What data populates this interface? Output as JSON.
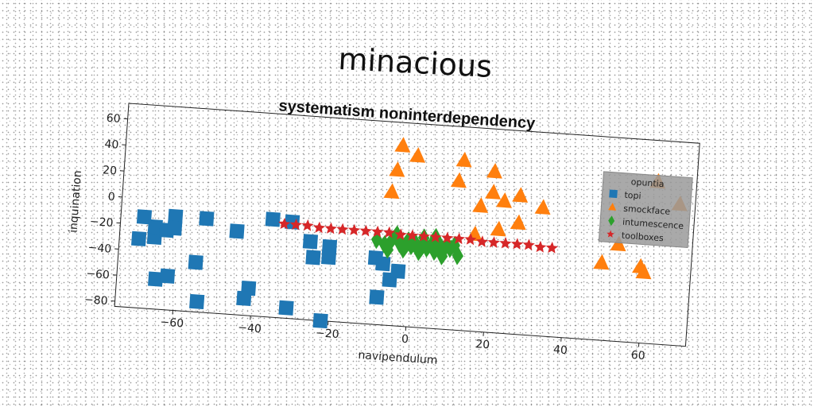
{
  "title": "minacious",
  "chart_data": {
    "type": "scatter",
    "title": "systematism noninterdependency",
    "xlabel": "navipendulum",
    "ylabel": "inquination",
    "xlim": [
      -75,
      72
    ],
    "ylim": [
      -84,
      72
    ],
    "xticks": [
      -60,
      -40,
      -20,
      0,
      20,
      40,
      60
    ],
    "yticks": [
      -80,
      -60,
      -40,
      -20,
      0,
      20,
      40,
      60
    ],
    "grid": false,
    "legend": {
      "title": "opuntia",
      "placement": "upper right"
    },
    "series": [
      {
        "name": "topi",
        "marker": "square",
        "color": "#1f77b4",
        "points": [
          [
            -69,
            -14
          ],
          [
            -70,
            -31
          ],
          [
            -66,
            -29
          ],
          [
            -66,
            -21
          ],
          [
            -63,
            -23
          ],
          [
            -61,
            -12
          ],
          [
            -61,
            -21
          ],
          [
            -53,
            -12
          ],
          [
            -55,
            -46
          ],
          [
            -45,
            -20
          ],
          [
            -36,
            -9
          ],
          [
            -31,
            -10
          ],
          [
            -26,
            -24
          ],
          [
            -25,
            -36
          ],
          [
            -21,
            -27
          ],
          [
            -21,
            -35
          ],
          [
            -65,
            -61
          ],
          [
            -62,
            -58
          ],
          [
            -54,
            -76
          ],
          [
            -41,
            -63
          ],
          [
            -42,
            -71
          ],
          [
            -31,
            -76
          ],
          [
            -22,
            -84
          ],
          [
            -9,
            -33
          ],
          [
            -7,
            -37
          ],
          [
            -5,
            -49
          ],
          [
            -3,
            -42
          ],
          [
            -8,
            -63
          ]
        ]
      },
      {
        "name": "smockface",
        "marker": "triangle",
        "color": "#ff7f0e",
        "points": [
          [
            -4,
            54
          ],
          [
            0,
            47
          ],
          [
            -5,
            35
          ],
          [
            -6,
            18
          ],
          [
            12,
            46
          ],
          [
            11,
            30
          ],
          [
            20,
            39
          ],
          [
            20,
            23
          ],
          [
            23,
            17
          ],
          [
            17,
            12
          ],
          [
            27,
            22
          ],
          [
            33,
            14
          ],
          [
            27,
            1
          ],
          [
            22,
            -5
          ],
          [
            16,
            -10
          ],
          [
            53,
            -10
          ],
          [
            49,
            -25
          ],
          [
            59,
            -26
          ],
          [
            60,
            -30
          ],
          [
            62,
            40
          ],
          [
            68,
            24
          ]
        ]
      },
      {
        "name": "intumescence",
        "marker": "diamond",
        "color": "#2ca02c",
        "points": [
          [
            -9,
            -19
          ],
          [
            -7,
            -22
          ],
          [
            -5,
            -18
          ],
          [
            -3,
            -21
          ],
          [
            -1,
            -18
          ],
          [
            0,
            -22
          ],
          [
            1,
            -20
          ],
          [
            3,
            -19
          ],
          [
            4,
            -23
          ],
          [
            5,
            -20
          ],
          [
            6,
            -25
          ],
          [
            7,
            -19
          ],
          [
            8,
            -23
          ],
          [
            9,
            -20
          ],
          [
            10,
            -22
          ],
          [
            11,
            -19
          ],
          [
            12,
            -27
          ],
          [
            -4,
            -14
          ],
          [
            -2,
            -25
          ],
          [
            2,
            -26
          ],
          [
            6,
            -14
          ],
          [
            8,
            -28
          ],
          [
            3,
            -15
          ],
          [
            -6,
            -26
          ]
        ]
      },
      {
        "name": "toolboxes",
        "marker": "star",
        "color": "#d62728",
        "points": [
          [
            -33,
            -12
          ],
          [
            -30,
            -12
          ],
          [
            -27,
            -12
          ],
          [
            -24,
            -13
          ],
          [
            -21,
            -13
          ],
          [
            -18,
            -13
          ],
          [
            -15,
            -13
          ],
          [
            -12,
            -13
          ],
          [
            -9,
            -13
          ],
          [
            -6,
            -13
          ],
          [
            -3,
            -14
          ],
          [
            0,
            -14
          ],
          [
            3,
            -14
          ],
          [
            6,
            -14
          ],
          [
            9,
            -14
          ],
          [
            12,
            -14
          ],
          [
            15,
            -14
          ],
          [
            18,
            -15
          ],
          [
            21,
            -15
          ],
          [
            24,
            -15
          ],
          [
            27,
            -15
          ],
          [
            30,
            -15
          ],
          [
            33,
            -16
          ],
          [
            36,
            -16
          ]
        ]
      }
    ]
  }
}
